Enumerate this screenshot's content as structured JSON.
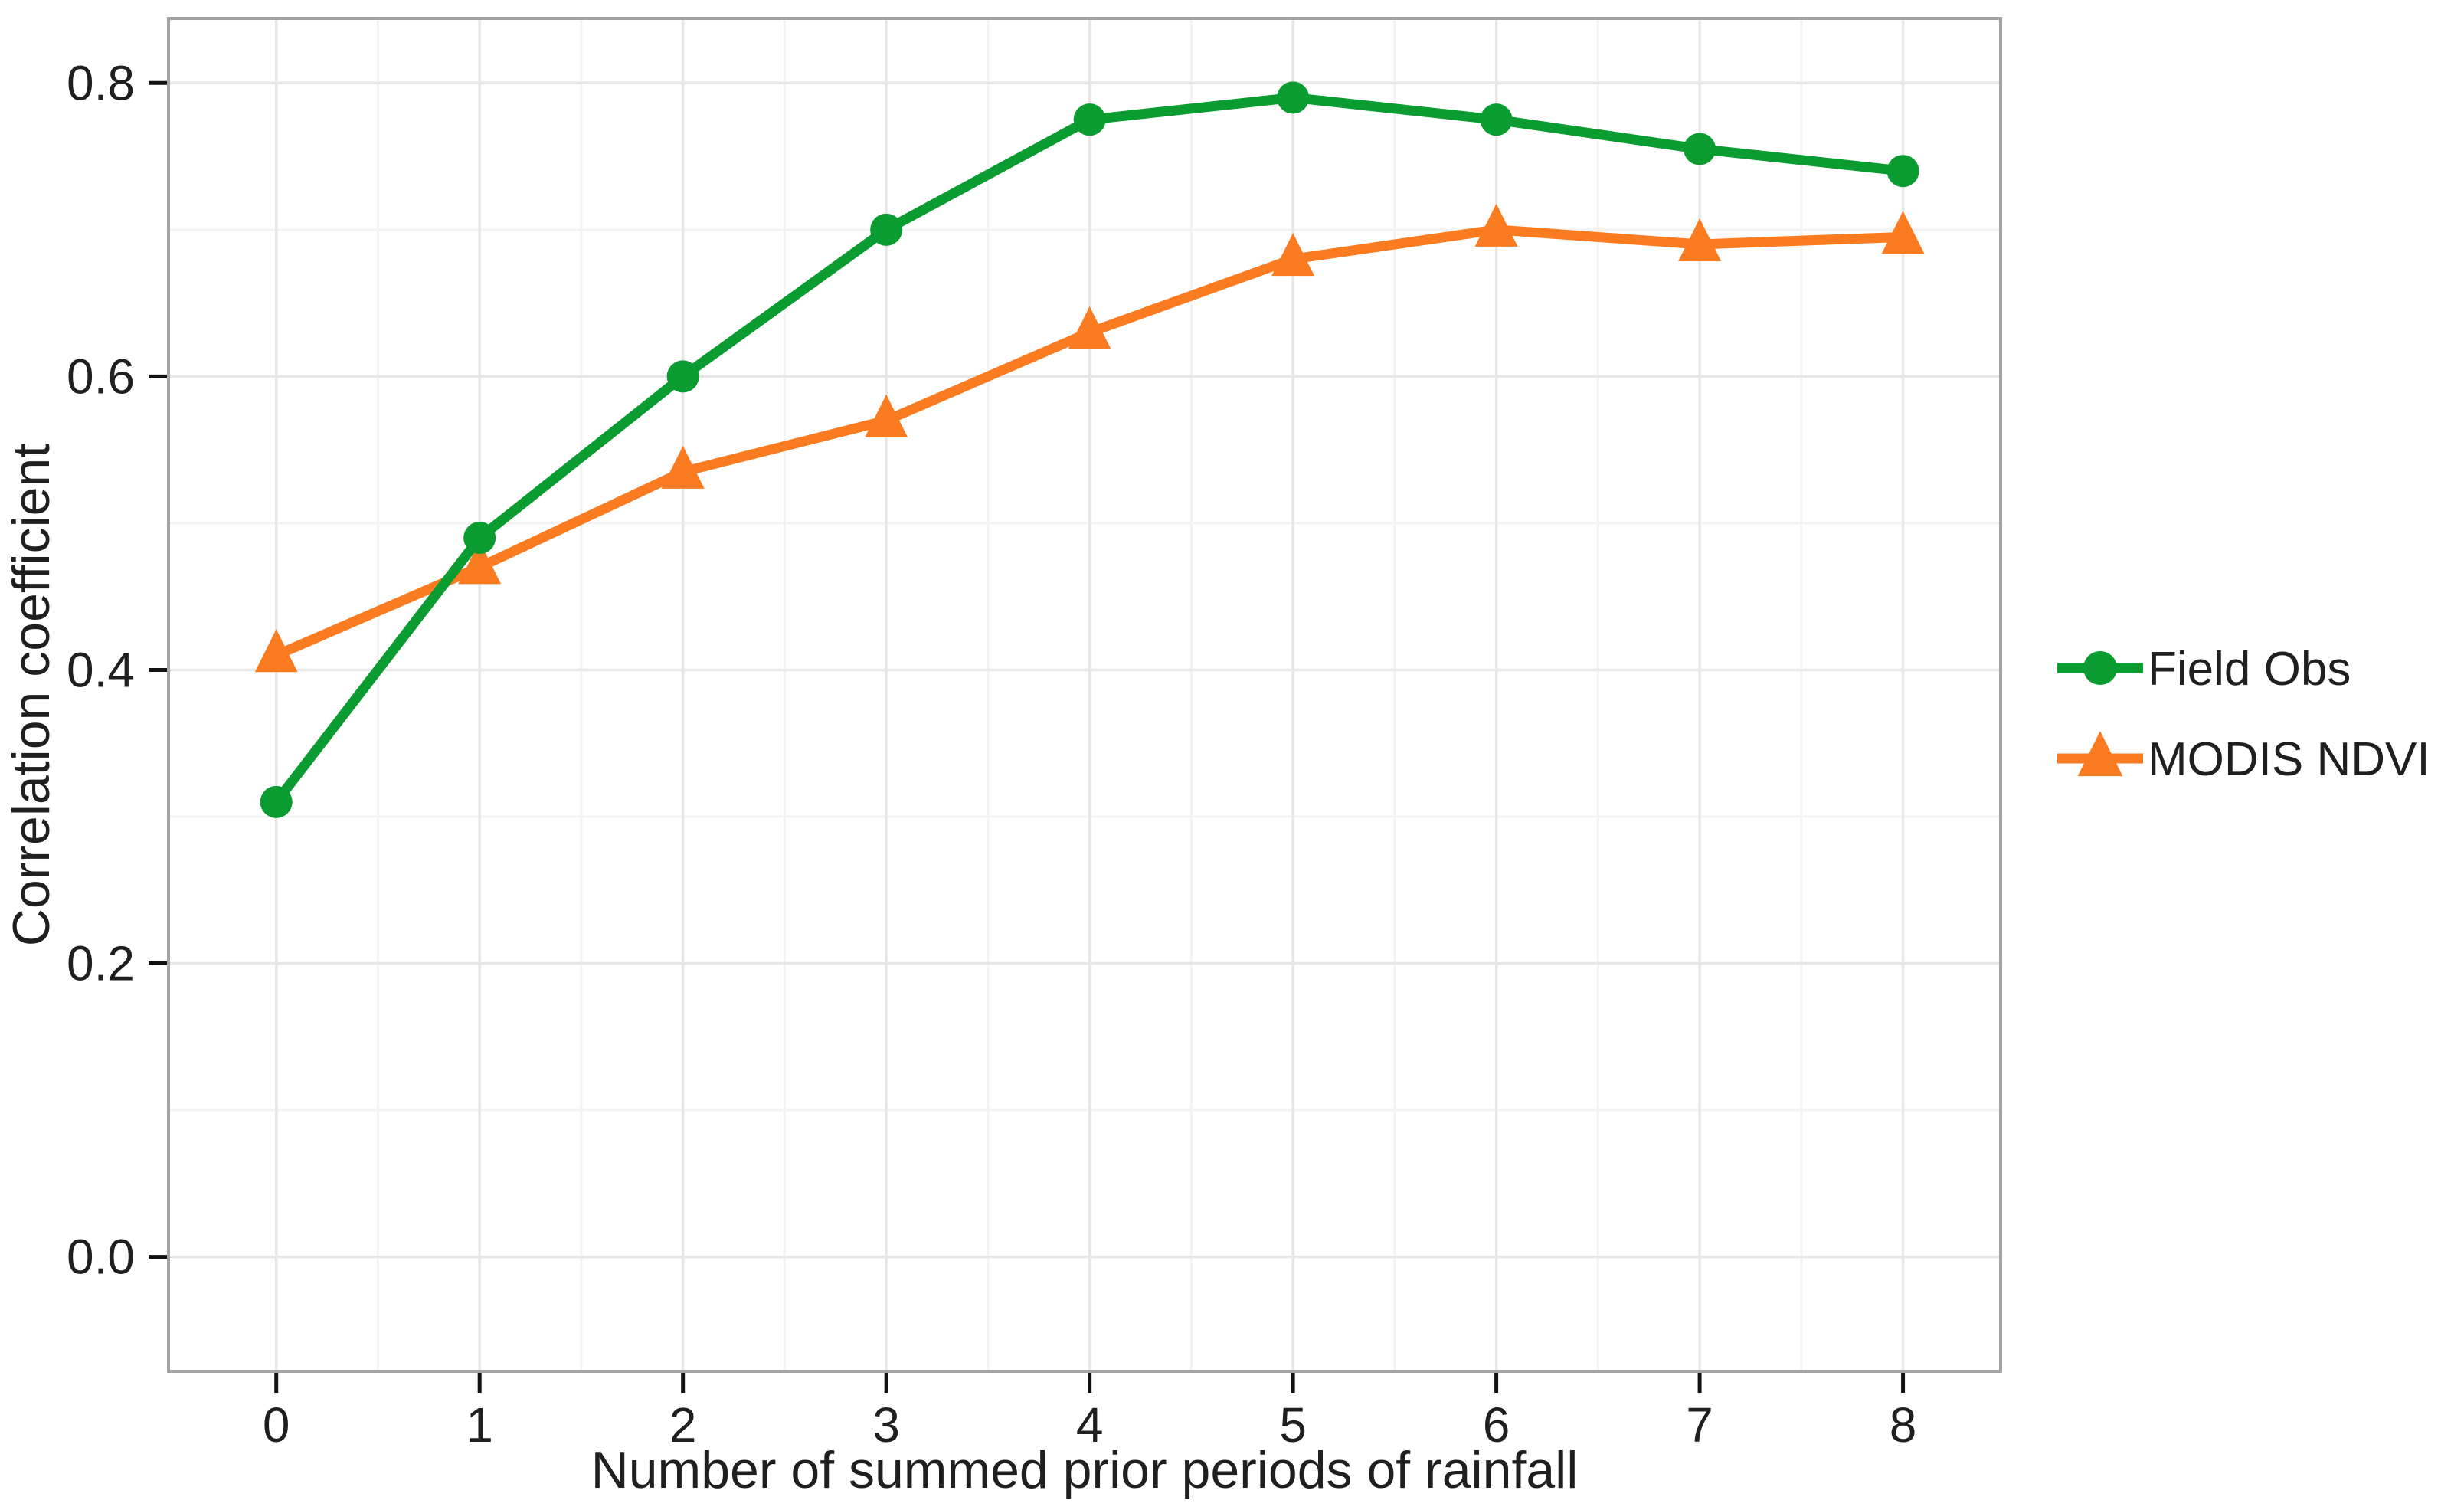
{
  "chart_data": {
    "type": "line",
    "title": "",
    "xlabel": "Number of summed prior periods of rainfall",
    "ylabel": "Correlation coefficient",
    "x": [
      0,
      1,
      2,
      3,
      4,
      5,
      6,
      7,
      8
    ],
    "x_tick_labels": [
      "0",
      "1",
      "2",
      "3",
      "4",
      "5",
      "6",
      "7",
      "8"
    ],
    "y_tick_values": [
      0.0,
      0.2,
      0.4,
      0.6,
      0.8
    ],
    "y_tick_labels": [
      "0.0",
      "0.2",
      "0.4",
      "0.6",
      "0.8"
    ],
    "x_minor_ticks": [
      0.5,
      1.5,
      2.5,
      3.5,
      4.5,
      5.5,
      6.5,
      7.5
    ],
    "y_minor_ticks": [
      0.1,
      0.3,
      0.5,
      0.7
    ],
    "xlim": [
      -0.53,
      8.48
    ],
    "ylim": [
      -0.078,
      0.844
    ],
    "grid": "major-and-minor",
    "legend_position": "right-center",
    "series": [
      {
        "name": "Field Obs",
        "marker": "circle",
        "color": "#0A9B31",
        "values": [
          0.31,
          0.49,
          0.6,
          0.7,
          0.775,
          0.79,
          0.775,
          0.755,
          0.74
        ]
      },
      {
        "name": "MODIS NDVI",
        "marker": "triangle",
        "color": "#FB7C20",
        "values": [
          0.41,
          0.47,
          0.535,
          0.57,
          0.63,
          0.68,
          0.7,
          0.69,
          0.695
        ]
      }
    ]
  },
  "theme": {
    "background": "#ffffff",
    "panel_border": "#a3a3a3",
    "grid_major": "#e7e7e7",
    "grid_minor": "#f3f3f3",
    "tick_color": "#111111",
    "text_color": "#1f1f1f"
  }
}
